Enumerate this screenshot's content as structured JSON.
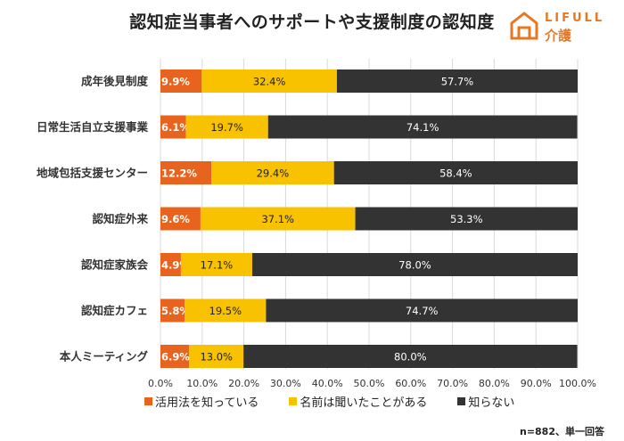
{
  "header": {
    "title": "認知症当事者へのサポートや支援制度の認知度",
    "logo_top": "LIFULL",
    "logo_bottom": "介護"
  },
  "chart_data": {
    "type": "bar",
    "orientation": "horizontal",
    "stacked": true,
    "title": "認知症当事者へのサポートや支援制度の認知度",
    "categories": [
      "成年後見制度",
      "日常生活自立支援事業",
      "地域包括支援センター",
      "認知症外来",
      "認知症家族会",
      "認知症カフェ",
      "本人ミーティング"
    ],
    "series": [
      {
        "name": "活用法を知っている",
        "color": "#e8641e",
        "label_color": "#ffffff",
        "values": [
          9.9,
          6.1,
          12.2,
          9.6,
          4.9,
          5.8,
          6.9
        ]
      },
      {
        "name": "名前は聞いたことがある",
        "color": "#f8c200",
        "label_color": "#222222",
        "values": [
          32.4,
          19.7,
          29.4,
          37.1,
          17.1,
          19.5,
          13.0
        ]
      },
      {
        "name": "知らない",
        "color": "#333333",
        "label_color": "#ffffff",
        "values": [
          57.7,
          74.1,
          58.4,
          53.3,
          78.0,
          74.7,
          80.0
        ]
      }
    ],
    "xlim": [
      0,
      100
    ],
    "xticks": [
      "0.0%",
      "10.0%",
      "20.0%",
      "30.0%",
      "40.0%",
      "50.0%",
      "60.0%",
      "70.0%",
      "80.0%",
      "90.0%",
      "100.0%"
    ],
    "grid": true,
    "legend_position": "bottom",
    "note": "n=882、単一回答"
  }
}
